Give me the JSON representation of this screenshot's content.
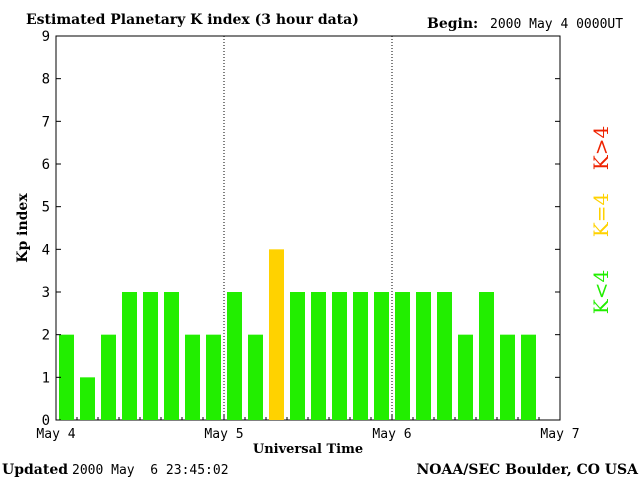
{
  "chart_data": {
    "type": "bar",
    "title": "Estimated Planetary K index (3 hour data)",
    "begin_label": "Begin:",
    "begin_value": "2000 May 4 0000UT",
    "xlabel": "Universal Time",
    "ylabel": "Kp index",
    "ylim": [
      0,
      9
    ],
    "yticks": [
      "0",
      "1",
      "2",
      "3",
      "4",
      "5",
      "6",
      "7",
      "8",
      "9"
    ],
    "day_labels": [
      "May 4",
      "May 5",
      "May 6",
      "May 7"
    ],
    "values": [
      2,
      1,
      2,
      3,
      3,
      3,
      2,
      2,
      3,
      2,
      4,
      3,
      3,
      3,
      3,
      3,
      3,
      3,
      3,
      2,
      3,
      2,
      2
    ],
    "day_separators": "dotted",
    "legend": [
      {
        "label": "K<4",
        "color": "#22ee00"
      },
      {
        "label": "K=4",
        "color": "#ffd200"
      },
      {
        "label": "K>4",
        "color": "#ee2200"
      }
    ],
    "colors": {
      "low": "#22ee00",
      "mid": "#ffd200",
      "high": "#ee2200"
    }
  },
  "footer": {
    "updated_label": "Updated",
    "updated_value": "2000 May  6 23:45:02",
    "source": "NOAA/SEC Boulder, CO USA"
  }
}
